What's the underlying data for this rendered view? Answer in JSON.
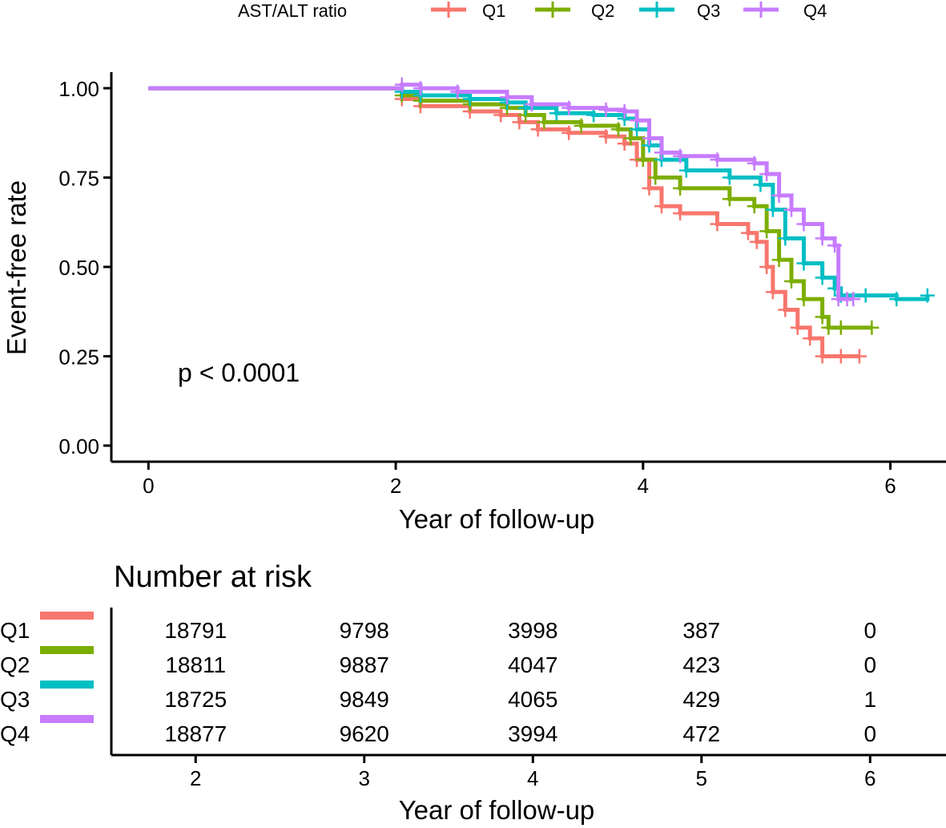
{
  "legend": {
    "title": "AST/ALT ratio",
    "entries": [
      "Q1",
      "Q2",
      "Q3",
      "Q4"
    ]
  },
  "colors": {
    "Q1": "#F8766D",
    "Q2": "#7CAE00",
    "Q3": "#00BFC4",
    "Q4": "#C77CFF"
  },
  "p_value_text": "p < 0.0001",
  "risk_table": {
    "title": "Number at risk",
    "xlabel": "Year of follow-up",
    "x_ticks": [
      "2",
      "3",
      "4",
      "5",
      "6"
    ],
    "x_values": [
      2,
      3,
      4,
      5,
      6
    ],
    "xlim": [
      1.5,
      6.45
    ],
    "groups": [
      "Q1",
      "Q2",
      "Q3",
      "Q4"
    ],
    "rows": [
      {
        "group": "Q1",
        "values": [
          "18791",
          "9798",
          "3998",
          "387",
          "0"
        ]
      },
      {
        "group": "Q2",
        "values": [
          "18811",
          "9887",
          "4047",
          "423",
          "0"
        ]
      },
      {
        "group": "Q3",
        "values": [
          "18725",
          "9849",
          "4065",
          "429",
          "1"
        ]
      },
      {
        "group": "Q4",
        "values": [
          "18877",
          "9620",
          "3994",
          "472",
          "0"
        ]
      }
    ]
  },
  "chart_data": {
    "type": "line",
    "subtype": "kaplan-meier",
    "title": "",
    "xlabel": "Year of follow-up",
    "ylabel": "Event-free rate",
    "xlim": [
      -0.3,
      6.45
    ],
    "ylim": [
      -0.045,
      1.045
    ],
    "x_ticks": [
      0,
      2,
      4,
      6
    ],
    "x_tick_labels": [
      "0",
      "2",
      "4",
      "6"
    ],
    "y_ticks": [
      0.0,
      0.25,
      0.5,
      0.75,
      1.0
    ],
    "y_tick_labels": [
      "0.00",
      "0.25",
      "0.50",
      "0.75",
      "1.00"
    ],
    "grid": false,
    "legend_position": "top",
    "series": [
      {
        "name": "Q1",
        "points": [
          [
            0,
            1.0
          ],
          [
            1.98,
            1.0
          ],
          [
            2.05,
            0.97
          ],
          [
            2.2,
            0.95
          ],
          [
            2.6,
            0.935
          ],
          [
            2.85,
            0.925
          ],
          [
            3.0,
            0.905
          ],
          [
            3.15,
            0.885
          ],
          [
            3.4,
            0.875
          ],
          [
            3.7,
            0.865
          ],
          [
            3.85,
            0.845
          ],
          [
            3.95,
            0.8
          ],
          [
            4.05,
            0.72
          ],
          [
            4.15,
            0.67
          ],
          [
            4.3,
            0.65
          ],
          [
            4.6,
            0.62
          ],
          [
            4.85,
            0.595
          ],
          [
            4.92,
            0.57
          ],
          [
            5.0,
            0.5
          ],
          [
            5.05,
            0.43
          ],
          [
            5.15,
            0.38
          ],
          [
            5.25,
            0.33
          ],
          [
            5.35,
            0.3
          ],
          [
            5.45,
            0.25
          ],
          [
            5.6,
            0.25
          ],
          [
            5.75,
            0.25
          ]
        ],
        "censor_end": [
          5.75,
          0.25
        ]
      },
      {
        "name": "Q2",
        "points": [
          [
            0,
            1.0
          ],
          [
            1.98,
            1.0
          ],
          [
            2.05,
            0.98
          ],
          [
            2.2,
            0.965
          ],
          [
            2.6,
            0.955
          ],
          [
            2.9,
            0.945
          ],
          [
            3.05,
            0.925
          ],
          [
            3.2,
            0.905
          ],
          [
            3.5,
            0.895
          ],
          [
            3.8,
            0.885
          ],
          [
            3.9,
            0.86
          ],
          [
            4.0,
            0.8
          ],
          [
            4.1,
            0.75
          ],
          [
            4.3,
            0.72
          ],
          [
            4.7,
            0.69
          ],
          [
            4.9,
            0.67
          ],
          [
            5.0,
            0.6
          ],
          [
            5.1,
            0.52
          ],
          [
            5.2,
            0.46
          ],
          [
            5.3,
            0.41
          ],
          [
            5.45,
            0.36
          ],
          [
            5.5,
            0.33
          ],
          [
            5.6,
            0.33
          ],
          [
            5.85,
            0.33
          ]
        ],
        "censor_end": [
          5.85,
          0.33
        ]
      },
      {
        "name": "Q3",
        "points": [
          [
            0,
            1.0
          ],
          [
            1.98,
            1.0
          ],
          [
            2.05,
            0.99
          ],
          [
            2.2,
            0.98
          ],
          [
            2.6,
            0.97
          ],
          [
            2.9,
            0.96
          ],
          [
            3.05,
            0.945
          ],
          [
            3.3,
            0.93
          ],
          [
            3.6,
            0.925
          ],
          [
            3.85,
            0.915
          ],
          [
            3.95,
            0.885
          ],
          [
            4.05,
            0.84
          ],
          [
            4.15,
            0.8
          ],
          [
            4.35,
            0.77
          ],
          [
            4.7,
            0.75
          ],
          [
            4.95,
            0.73
          ],
          [
            5.05,
            0.66
          ],
          [
            5.15,
            0.58
          ],
          [
            5.3,
            0.51
          ],
          [
            5.45,
            0.47
          ],
          [
            5.55,
            0.44
          ],
          [
            5.6,
            0.42
          ],
          [
            5.8,
            0.42
          ],
          [
            6.05,
            0.41
          ],
          [
            6.3,
            0.42
          ]
        ],
        "censor_end": [
          6.3,
          0.42
        ]
      },
      {
        "name": "Q4",
        "points": [
          [
            0,
            1.0
          ],
          [
            1.98,
            1.0
          ],
          [
            2.05,
            1.01
          ],
          [
            2.2,
            1.0
          ],
          [
            2.5,
            0.99
          ],
          [
            2.9,
            0.975
          ],
          [
            3.1,
            0.955
          ],
          [
            3.4,
            0.945
          ],
          [
            3.7,
            0.94
          ],
          [
            3.85,
            0.935
          ],
          [
            3.95,
            0.91
          ],
          [
            4.05,
            0.86
          ],
          [
            4.15,
            0.82
          ],
          [
            4.3,
            0.81
          ],
          [
            4.6,
            0.8
          ],
          [
            4.9,
            0.79
          ],
          [
            5.0,
            0.76
          ],
          [
            5.1,
            0.7
          ],
          [
            5.2,
            0.66
          ],
          [
            5.3,
            0.62
          ],
          [
            5.45,
            0.58
          ],
          [
            5.55,
            0.56
          ],
          [
            5.58,
            0.41
          ],
          [
            5.65,
            0.41
          ],
          [
            5.7,
            0.41
          ]
        ],
        "censor_end": [
          5.7,
          0.41
        ]
      }
    ]
  }
}
